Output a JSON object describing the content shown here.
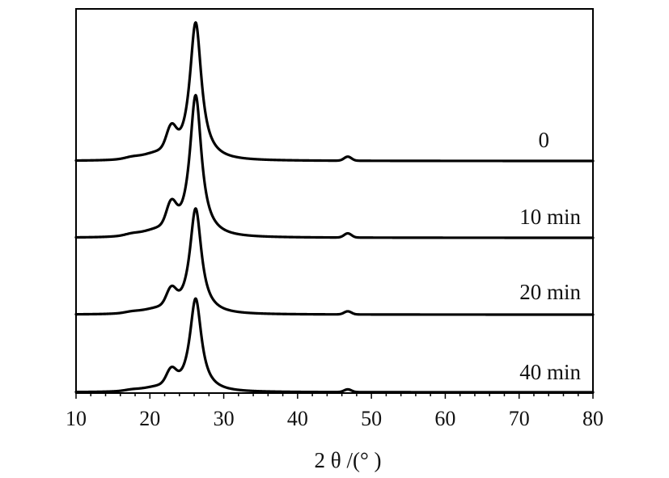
{
  "chart_data": {
    "type": "line",
    "xlabel": "2 θ /(°  )",
    "ylabel": "",
    "xlim": [
      10,
      80
    ],
    "x_ticks": [
      "10",
      "20",
      "30",
      "40",
      "50",
      "60",
      "70",
      "80"
    ],
    "grid": false,
    "legend": "none",
    "peaks": {
      "main": {
        "x": 26.2,
        "relative_height": 1.0
      },
      "shoulder": {
        "x": 22.9,
        "relative_height": 0.15
      },
      "minor": {
        "x": 46.8,
        "relative_height": 0.03
      }
    },
    "series": [
      {
        "name": "0"
      },
      {
        "name": "10 min"
      },
      {
        "name": "20 min"
      },
      {
        "name": "40 min"
      }
    ]
  }
}
